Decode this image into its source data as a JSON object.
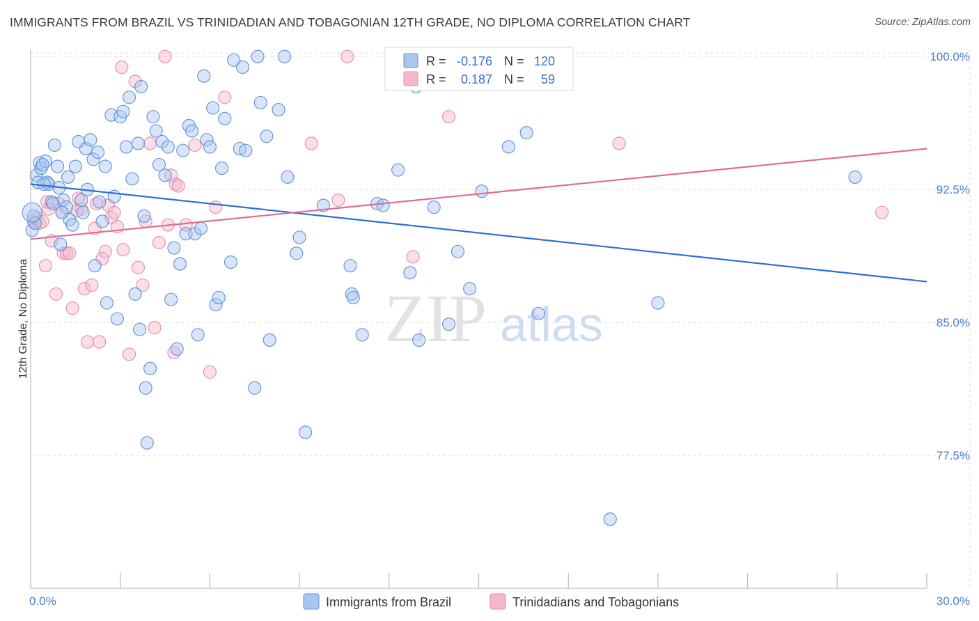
{
  "header": {
    "title": "IMMIGRANTS FROM BRAZIL VS TRINIDADIAN AND TOBAGONIAN 12TH GRADE, NO DIPLOMA CORRELATION CHART",
    "source": "Source: ZipAtlas.com"
  },
  "legend": {
    "rows": [
      {
        "r_label": "R =",
        "r_value": "-0.176",
        "n_label": "N =",
        "n_value": "120"
      },
      {
        "r_label": "R =",
        "r_value": "0.187",
        "n_label": "N =",
        "n_value": "59"
      }
    ]
  },
  "bottom_legend": {
    "items": [
      "Immigrants from Brazil",
      "Trinidadians and Tobagonians"
    ]
  },
  "watermark": {
    "zip": "ZIP",
    "atlas": "atlas"
  },
  "colors": {
    "blue_fill": "#a9c6ef",
    "blue_stroke": "#5b8fd8",
    "blue_line": "#2c6fd6",
    "pink_fill": "#f5b8cb",
    "pink_stroke": "#e58aa8",
    "pink_line": "#e06b93",
    "grid": "#dddddd",
    "tick_label": "#4a7bd0"
  },
  "chart_data": {
    "type": "scatter",
    "title": "IMMIGRANTS FROM BRAZIL VS TRINIDADIAN AND TOBAGONIAN 12TH GRADE, NO DIPLOMA CORRELATION CHART",
    "xlabel": "",
    "ylabel": "12th Grade, No Diploma",
    "xlim": [
      0,
      30
    ],
    "ylim": [
      70,
      101.5
    ],
    "x_tick_labels": [
      "0.0%",
      "30.0%"
    ],
    "y_ticks": [
      77.5,
      85.0,
      92.5,
      100.0
    ],
    "y_tick_labels": [
      "77.5%",
      "85.0%",
      "92.5%",
      "100.0%"
    ],
    "grid": true,
    "series": [
      {
        "name": "Immigrants from Brazil",
        "color": "blue",
        "r": -0.176,
        "n": 120,
        "trend": {
          "x0": 0,
          "y0": 92.8,
          "x1": 30,
          "y1": 87.3
        },
        "points": [
          [
            0.05,
            90.2
          ],
          [
            0.1,
            91.0
          ],
          [
            0.15,
            90.6
          ],
          [
            0.2,
            93.3
          ],
          [
            0.3,
            94.0
          ],
          [
            0.35,
            93.7
          ],
          [
            0.5,
            94.1
          ],
          [
            0.55,
            92.9
          ],
          [
            0.6,
            92.8
          ],
          [
            0.7,
            91.8
          ],
          [
            0.8,
            95.0
          ],
          [
            0.9,
            93.8
          ],
          [
            0.95,
            92.6
          ],
          [
            1.0,
            89.4
          ],
          [
            1.1,
            91.9
          ],
          [
            1.2,
            91.5
          ],
          [
            1.3,
            90.8
          ],
          [
            1.4,
            90.5
          ],
          [
            1.5,
            93.8
          ],
          [
            1.6,
            95.2
          ],
          [
            1.7,
            91.9
          ],
          [
            1.85,
            94.8
          ],
          [
            1.9,
            92.5
          ],
          [
            2.0,
            95.3
          ],
          [
            2.1,
            94.2
          ],
          [
            2.15,
            88.2
          ],
          [
            2.25,
            94.6
          ],
          [
            2.3,
            91.8
          ],
          [
            2.4,
            90.7
          ],
          [
            2.5,
            93.8
          ],
          [
            2.55,
            86.1
          ],
          [
            2.7,
            96.7
          ],
          [
            2.8,
            92.1
          ],
          [
            2.9,
            85.2
          ],
          [
            3.0,
            96.6
          ],
          [
            3.1,
            96.9
          ],
          [
            3.2,
            94.9
          ],
          [
            3.3,
            97.7
          ],
          [
            3.4,
            93.1
          ],
          [
            3.5,
            86.6
          ],
          [
            3.6,
            95.1
          ],
          [
            3.65,
            84.6
          ],
          [
            3.7,
            98.3
          ],
          [
            3.8,
            91.0
          ],
          [
            3.85,
            81.3
          ],
          [
            3.9,
            78.2
          ],
          [
            4.0,
            82.4
          ],
          [
            4.1,
            96.6
          ],
          [
            4.2,
            95.8
          ],
          [
            4.3,
            93.9
          ],
          [
            4.4,
            95.2
          ],
          [
            4.5,
            93.3
          ],
          [
            4.6,
            94.9
          ],
          [
            4.7,
            86.3
          ],
          [
            4.8,
            89.2
          ],
          [
            4.9,
            83.5
          ],
          [
            5.0,
            88.3
          ],
          [
            5.1,
            94.7
          ],
          [
            5.2,
            90.0
          ],
          [
            5.3,
            96.1
          ],
          [
            5.4,
            95.8
          ],
          [
            5.5,
            90.0
          ],
          [
            5.6,
            84.3
          ],
          [
            5.7,
            90.3
          ],
          [
            5.8,
            98.9
          ],
          [
            5.9,
            95.3
          ],
          [
            6.0,
            94.9
          ],
          [
            6.1,
            97.1
          ],
          [
            6.2,
            86.0
          ],
          [
            6.3,
            86.4
          ],
          [
            6.4,
            93.7
          ],
          [
            6.5,
            96.5
          ],
          [
            6.7,
            88.4
          ],
          [
            6.8,
            99.8
          ],
          [
            7.0,
            94.8
          ],
          [
            7.1,
            99.4
          ],
          [
            7.2,
            94.7
          ],
          [
            7.5,
            81.3
          ],
          [
            7.6,
            100.0
          ],
          [
            7.7,
            97.4
          ],
          [
            7.9,
            95.5
          ],
          [
            8.0,
            84.0
          ],
          [
            8.3,
            97.0
          ],
          [
            8.5,
            100.0
          ],
          [
            8.6,
            93.2
          ],
          [
            8.9,
            88.9
          ],
          [
            9.0,
            89.8
          ],
          [
            9.2,
            78.8
          ],
          [
            9.8,
            91.6
          ],
          [
            10.7,
            88.2
          ],
          [
            10.75,
            86.6
          ],
          [
            10.8,
            86.4
          ],
          [
            11.1,
            84.3
          ],
          [
            11.6,
            91.7
          ],
          [
            11.8,
            91.6
          ],
          [
            12.3,
            93.6
          ],
          [
            12.7,
            87.8
          ],
          [
            12.9,
            98.3
          ],
          [
            13.0,
            84.0
          ],
          [
            13.4,
            100.0
          ],
          [
            13.5,
            91.5
          ],
          [
            14.0,
            84.9
          ],
          [
            14.3,
            89.0
          ],
          [
            14.7,
            86.9
          ],
          [
            15.1,
            92.4
          ],
          [
            16.0,
            94.9
          ],
          [
            16.3,
            100.0
          ],
          [
            16.6,
            95.7
          ],
          [
            16.9,
            100.0
          ],
          [
            17.0,
            85.5
          ],
          [
            19.4,
            73.9
          ],
          [
            21.0,
            86.1
          ],
          [
            27.6,
            93.2
          ],
          [
            0.25,
            92.9
          ],
          [
            0.4,
            93.9
          ],
          [
            0.45,
            92.8
          ],
          [
            0.75,
            91.7
          ],
          [
            1.05,
            91.2
          ],
          [
            1.25,
            93.2
          ],
          [
            1.75,
            91.2
          ]
        ]
      },
      {
        "name": "Trinidadians and Tobagonians",
        "color": "pink",
        "r": 0.187,
        "n": 59,
        "trend": {
          "x0": 0,
          "y0": 89.7,
          "x1": 30,
          "y1": 94.8
        },
        "points": [
          [
            0.1,
            90.7
          ],
          [
            0.2,
            90.9
          ],
          [
            0.3,
            90.6
          ],
          [
            0.4,
            90.7
          ],
          [
            0.5,
            88.2
          ],
          [
            0.6,
            91.4
          ],
          [
            0.7,
            89.6
          ],
          [
            0.85,
            86.6
          ],
          [
            0.95,
            91.7
          ],
          [
            1.05,
            91.2
          ],
          [
            1.1,
            88.9
          ],
          [
            1.2,
            88.9
          ],
          [
            1.3,
            88.9
          ],
          [
            1.4,
            85.8
          ],
          [
            1.55,
            91.3
          ],
          [
            1.6,
            92.0
          ],
          [
            1.7,
            91.4
          ],
          [
            1.8,
            86.9
          ],
          [
            1.9,
            83.9
          ],
          [
            2.05,
            87.1
          ],
          [
            2.15,
            90.3
          ],
          [
            2.2,
            91.7
          ],
          [
            2.3,
            83.9
          ],
          [
            2.4,
            88.6
          ],
          [
            2.5,
            89.0
          ],
          [
            2.6,
            91.6
          ],
          [
            2.7,
            90.9
          ],
          [
            2.8,
            91.2
          ],
          [
            2.9,
            90.4
          ],
          [
            3.05,
            99.4
          ],
          [
            3.1,
            89.1
          ],
          [
            3.3,
            83.2
          ],
          [
            3.5,
            98.6
          ],
          [
            3.6,
            88.1
          ],
          [
            3.75,
            87.1
          ],
          [
            3.85,
            90.7
          ],
          [
            4.0,
            95.1
          ],
          [
            4.15,
            84.7
          ],
          [
            4.3,
            89.5
          ],
          [
            4.5,
            100.0
          ],
          [
            4.6,
            90.5
          ],
          [
            4.7,
            93.3
          ],
          [
            4.8,
            83.3
          ],
          [
            4.85,
            92.8
          ],
          [
            4.95,
            92.7
          ],
          [
            5.2,
            90.5
          ],
          [
            5.5,
            95.0
          ],
          [
            6.0,
            82.2
          ],
          [
            6.2,
            91.5
          ],
          [
            6.5,
            97.7
          ],
          [
            9.4,
            95.1
          ],
          [
            10.3,
            91.9
          ],
          [
            10.6,
            100.0
          ],
          [
            12.8,
            88.7
          ],
          [
            13.7,
            100.0
          ],
          [
            14.0,
            96.6
          ],
          [
            19.7,
            95.1
          ],
          [
            28.5,
            91.2
          ],
          [
            0.55,
            91.8
          ]
        ]
      }
    ]
  }
}
